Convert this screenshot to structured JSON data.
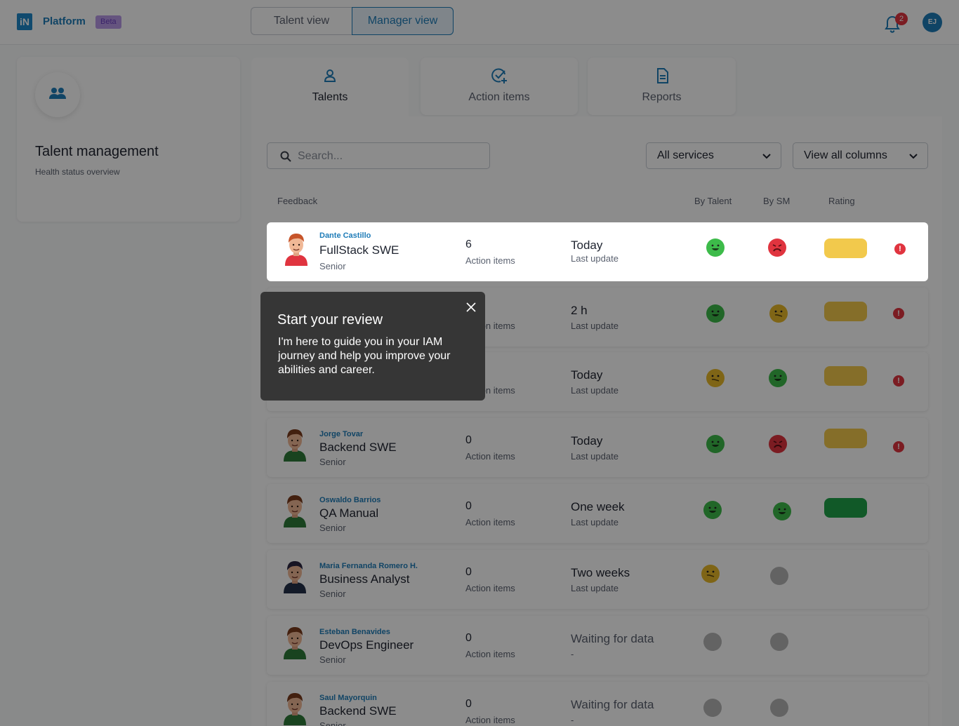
{
  "header": {
    "logo_text": "iN",
    "brand": "Platform",
    "badge": "Beta",
    "view_toggle": [
      "Talent view",
      "Manager view"
    ],
    "notifications_count": "2",
    "user_initials": "EJ"
  },
  "left_panel": {
    "title": "Talent management",
    "subtitle": "Health status overview",
    "icon": "group-icon"
  },
  "tabs": [
    {
      "label": "Talents",
      "icon": "person-icon",
      "active": true
    },
    {
      "label": "Action items",
      "icon": "check-plus-icon",
      "active": false
    },
    {
      "label": "Reports",
      "icon": "document-icon",
      "active": false
    }
  ],
  "filters": {
    "search_placeholder": "Search...",
    "services": "All services",
    "columns": "View all columns"
  },
  "columns": {
    "feedback": "Feedback",
    "by_talent": "By Talent",
    "by_sm": "By SM",
    "rating": "Rating"
  },
  "rows": [
    {
      "name": "Dante Castillo",
      "role": "FullStack SWE",
      "level": "Senior",
      "count": "6",
      "count_label": "Action items",
      "update": "Today",
      "update_label": "Last update",
      "by_talent": "happy",
      "by_sm": "sad",
      "rating": "#f2c94c",
      "alert": true
    },
    {
      "name": "",
      "role": "",
      "level": "",
      "count": "",
      "count_label": "Action items",
      "update": "2 h",
      "update_label": "Last update",
      "by_talent": "happy",
      "by_sm": "neutral",
      "rating": "#f2c94c",
      "alert": true
    },
    {
      "name": "",
      "role": "",
      "level": "",
      "count": "",
      "count_label": "Action items",
      "update": "Today",
      "update_label": "Last update",
      "by_talent": "neutral",
      "by_sm": "happy",
      "rating": "#f2c94c",
      "alert": true
    },
    {
      "name": "Jorge Tovar",
      "role": "Backend SWE",
      "level": "Senior",
      "count": "0",
      "count_label": "Action items",
      "update": "Today",
      "update_label": "Last update",
      "by_talent": "happy",
      "by_sm": "sad",
      "rating": "#f2c94c",
      "alert": true
    },
    {
      "name": "Oswaldo Barrios",
      "role": "QA Manual",
      "level": "Senior",
      "count": "0",
      "count_label": "Action items",
      "update": "One week",
      "update_label": "Last update",
      "by_talent": "happy",
      "by_sm": "happy",
      "rating": "#1fa24a",
      "alert": false
    },
    {
      "name": "Maria Fernanda Romero H.",
      "role": "Business Analyst",
      "level": "Senior",
      "count": "0",
      "count_label": "Action items",
      "update": "Two weeks",
      "update_label": "Last update",
      "by_talent": "neutral",
      "by_sm": "none",
      "rating": "",
      "alert": false
    },
    {
      "name": "Esteban Benavides",
      "role": "DevOps Engineer",
      "level": "Senior",
      "count": "0",
      "count_label": "Action items",
      "update": "Waiting for data",
      "update_label": "-",
      "by_talent": "none",
      "by_sm": "none",
      "rating": "",
      "alert": false
    },
    {
      "name": "Saul Mayorquin",
      "role": "Backend SWE",
      "level": "Senior",
      "count": "0",
      "count_label": "Action items",
      "update": "Waiting for data",
      "update_label": "-",
      "by_talent": "none",
      "by_sm": "none",
      "rating": "",
      "alert": false
    }
  ],
  "tooltip": {
    "title": "Start your review",
    "body": "I'm here to guide you in your IAM journey and help you improve your abilities and career."
  },
  "colors": {
    "accent": "#1e7cb8",
    "happy": "#3dbb4a",
    "sad": "#e0343f",
    "neutral": "#e8b928",
    "none": "#b5b5b5",
    "alert": "#e0343f"
  }
}
